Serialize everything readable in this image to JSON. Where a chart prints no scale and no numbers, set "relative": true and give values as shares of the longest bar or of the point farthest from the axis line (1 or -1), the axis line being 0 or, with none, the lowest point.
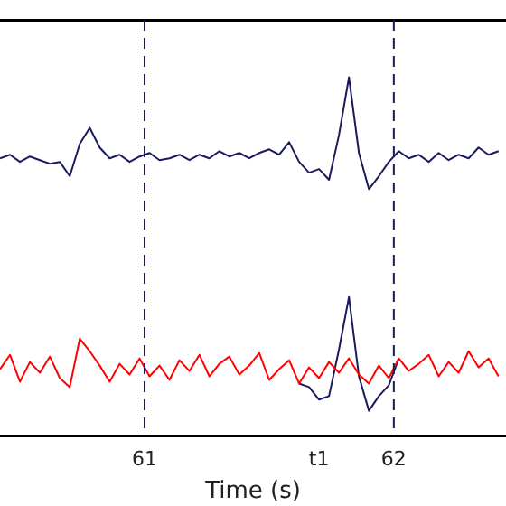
{
  "chart_data": {
    "type": "line",
    "relative": true,
    "xlabel": "Time (s)",
    "xlim": [
      60.42,
      62.45
    ],
    "xticks": [
      61,
      {
        "value": 61.7,
        "label": "t1"
      },
      62
    ],
    "grid": false,
    "legend": false,
    "marker": "none",
    "line_style": "solid",
    "x": [
      60.42,
      60.46,
      60.5,
      60.54,
      60.58,
      60.62,
      60.66,
      60.7,
      60.74,
      60.78,
      60.82,
      60.86,
      60.9,
      60.94,
      60.98,
      61.02,
      61.06,
      61.1,
      61.14,
      61.18,
      61.22,
      61.26,
      61.3,
      61.34,
      61.38,
      61.42,
      61.46,
      61.5,
      61.54,
      61.58,
      61.62,
      61.66,
      61.7,
      61.74,
      61.78,
      61.82,
      61.86,
      61.9,
      61.94,
      61.98,
      62.02,
      62.06,
      62.1,
      62.14,
      62.18,
      62.22,
      62.26,
      62.3,
      62.34,
      62.38,
      62.42
    ],
    "ref_lines": [
      {
        "axis": "x",
        "value": 61,
        "color": "#1a1a5e",
        "line_style": "dashed"
      },
      {
        "axis": "x",
        "value": 62,
        "color": "#1a1a5e",
        "line_style": "dashed"
      }
    ],
    "series": [
      {
        "color": "#1a1a5e",
        "values": [
          0.774,
          0.784,
          0.764,
          0.779,
          0.769,
          0.759,
          0.764,
          0.724,
          0.814,
          0.859,
          0.804,
          0.774,
          0.784,
          0.764,
          0.779,
          0.789,
          0.769,
          0.774,
          0.784,
          0.769,
          0.784,
          0.774,
          0.794,
          0.779,
          0.789,
          0.774,
          0.789,
          0.799,
          0.784,
          0.819,
          0.764,
          0.734,
          0.744,
          0.714,
          0.839,
          1,
          0.789,
          0.688,
          0.724,
          0.764,
          0.794,
          0.774,
          0.784,
          0.764,
          0.789,
          0.769,
          0.784,
          0.774,
          0.804,
          0.784,
          0.794
        ]
      },
      {
        "color": "#1a1a5e",
        "values": [
          null,
          null,
          null,
          null,
          null,
          null,
          null,
          null,
          null,
          null,
          null,
          null,
          null,
          null,
          null,
          null,
          null,
          null,
          null,
          null,
          null,
          null,
          null,
          null,
          null,
          null,
          null,
          null,
          null,
          null,
          0.146,
          0.136,
          0.101,
          0.111,
          0.241,
          0.387,
          0.166,
          0.07,
          0.111,
          0.141,
          0.216,
          null,
          null,
          null,
          null,
          null,
          null,
          null,
          null,
          null,
          null
        ]
      },
      {
        "color": "#ff0000",
        "values": [
          0.186,
          0.226,
          0.151,
          0.206,
          0.176,
          0.221,
          0.161,
          0.136,
          0.271,
          0.236,
          0.196,
          0.151,
          0.201,
          0.171,
          0.216,
          0.166,
          0.196,
          0.156,
          0.211,
          0.181,
          0.226,
          0.166,
          0.201,
          0.221,
          0.171,
          0.196,
          0.231,
          0.156,
          0.186,
          0.211,
          0.146,
          0.191,
          0.161,
          0.206,
          0.176,
          0.216,
          0.171,
          0.146,
          0.196,
          0.161,
          0.216,
          0.181,
          0.201,
          0.226,
          0.166,
          0.206,
          0.176,
          0.236,
          0.191,
          0.216,
          0.166
        ]
      }
    ]
  }
}
